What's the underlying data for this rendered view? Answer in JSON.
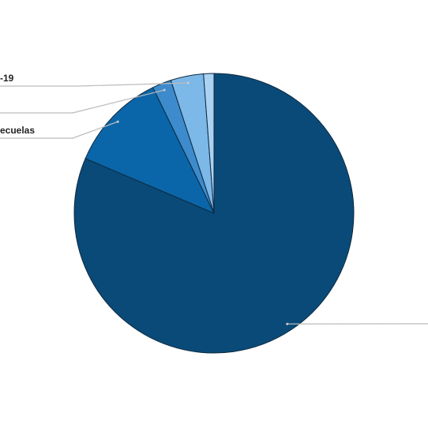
{
  "chart_data": {
    "type": "pie",
    "categories": [
      null,
      "ecuelas",
      null,
      "-19",
      null
    ],
    "values": [
      81.4,
      11.4,
      2.2,
      3.8,
      1.2
    ],
    "colors": [
      "#0a4a78",
      "#0a66a8",
      "#3d8bcc",
      "#7cb8e8",
      "#acd2f2"
    ]
  }
}
